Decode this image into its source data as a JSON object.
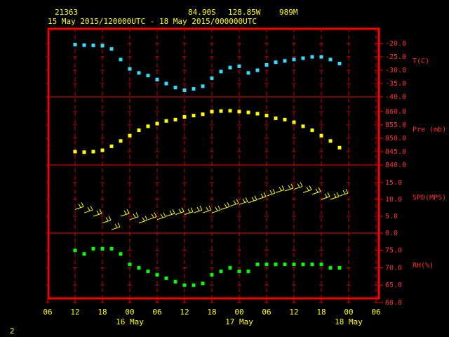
{
  "header": {
    "station": "21363",
    "lat": "84.90S",
    "lon": "128.85W",
    "elev": "989M",
    "period": "15 May 2015/120000UTC - 18 May 2015/000000UTC",
    "page": "2"
  },
  "time": {
    "x": [
      12,
      14,
      16,
      18,
      20,
      22,
      24,
      26,
      28,
      30,
      32,
      34,
      36,
      38,
      40,
      42,
      44,
      46,
      48,
      50,
      52,
      54,
      56,
      58,
      60,
      62,
      64,
      66,
      68,
      70
    ],
    "xlim": [
      6,
      78
    ],
    "xticks": [
      {
        "value": 6,
        "label": "06"
      },
      {
        "value": 12,
        "label": "12"
      },
      {
        "value": 18,
        "label": "18"
      },
      {
        "value": 24,
        "label": "00"
      },
      {
        "value": 30,
        "label": "06"
      },
      {
        "value": 36,
        "label": "12"
      },
      {
        "value": 42,
        "label": "18"
      },
      {
        "value": 48,
        "label": "00"
      },
      {
        "value": 54,
        "label": "06"
      },
      {
        "value": 60,
        "label": "12"
      },
      {
        "value": 66,
        "label": "18"
      },
      {
        "value": 72,
        "label": "00"
      },
      {
        "value": 78,
        "label": "06"
      }
    ],
    "date_labels": [
      {
        "value": 24,
        "label": "16 May"
      },
      {
        "value": 48,
        "label": "17 May"
      },
      {
        "value": 72,
        "label": "18 May"
      }
    ]
  },
  "chart_data": [
    {
      "type": "scatter",
      "ylabel": "T(C)",
      "color": "#33ddff",
      "ylim": [
        -40,
        -14.2
      ],
      "yticks": [
        {
          "value": -20,
          "label": "-20.0"
        },
        {
          "value": -25,
          "label": "-25.0"
        },
        {
          "value": -30,
          "label": "-30.0"
        },
        {
          "value": -35,
          "label": "-35.0"
        },
        {
          "value": -40,
          "label": "-40.0"
        }
      ],
      "values": [
        -20.4,
        -20.6,
        -20.7,
        -20.8,
        -22,
        -26,
        -29.5,
        -31,
        -32,
        -33.5,
        -35,
        -36.5,
        -37.5,
        -37,
        -36,
        -33,
        -30.5,
        -29,
        -28.5,
        -31,
        -30,
        -28,
        -27,
        -26.5,
        -26,
        -25.5,
        -25,
        -25,
        -26,
        -27.5
      ]
    },
    {
      "type": "scatter",
      "ylabel": "Pre (mb)",
      "color": "#ffff00",
      "ylim": [
        840,
        865.5
      ],
      "yticks": [
        {
          "value": 860,
          "label": "860.0"
        },
        {
          "value": 855,
          "label": "855.0"
        },
        {
          "value": 850,
          "label": "850.0"
        },
        {
          "value": 845,
          "label": "845.0"
        },
        {
          "value": 840,
          "label": "840.0"
        }
      ],
      "values": [
        845,
        844.8,
        845,
        845.5,
        847,
        849,
        851,
        853,
        854.5,
        855.5,
        856.5,
        857,
        858,
        858.5,
        859,
        860,
        860.2,
        860.3,
        860,
        859.7,
        859.2,
        858.5,
        857.5,
        857,
        856,
        854.5,
        853,
        851,
        849,
        846.5
      ]
    },
    {
      "type": "barbs",
      "ylabel": "SPD(MPS)",
      "color": "#ffff00",
      "ylim": [
        0,
        20.2
      ],
      "yticks": [
        {
          "value": 15,
          "label": "15.0"
        },
        {
          "value": 10,
          "label": "10.0"
        },
        {
          "value": 5,
          "label": "5.0"
        },
        {
          "value": 0,
          "label": "0.0"
        }
      ],
      "values": [
        7,
        6,
        5,
        3,
        1,
        5,
        4,
        3,
        4,
        4,
        5,
        5.5,
        5.5,
        6,
        6,
        6,
        7,
        8,
        8.5,
        9,
        10,
        11,
        12,
        12.5,
        13,
        12,
        11.5,
        10,
        10,
        11
      ]
    },
    {
      "type": "scatter",
      "ylabel": "RH(%)",
      "color": "#00ff00",
      "ylim": [
        60.6,
        80
      ],
      "yticks": [
        {
          "value": 75,
          "label": "75.0"
        },
        {
          "value": 70,
          "label": "70.0"
        },
        {
          "value": 65,
          "label": "65.0"
        },
        {
          "value": 60,
          "label": "60.0"
        }
      ],
      "values": [
        75,
        74,
        75.5,
        75.5,
        75.5,
        74,
        71,
        70,
        69,
        68,
        67,
        66,
        65,
        65,
        65.5,
        68,
        69,
        70,
        69,
        69,
        71,
        71,
        71,
        71,
        71,
        71,
        71,
        71,
        70,
        70
      ]
    }
  ]
}
